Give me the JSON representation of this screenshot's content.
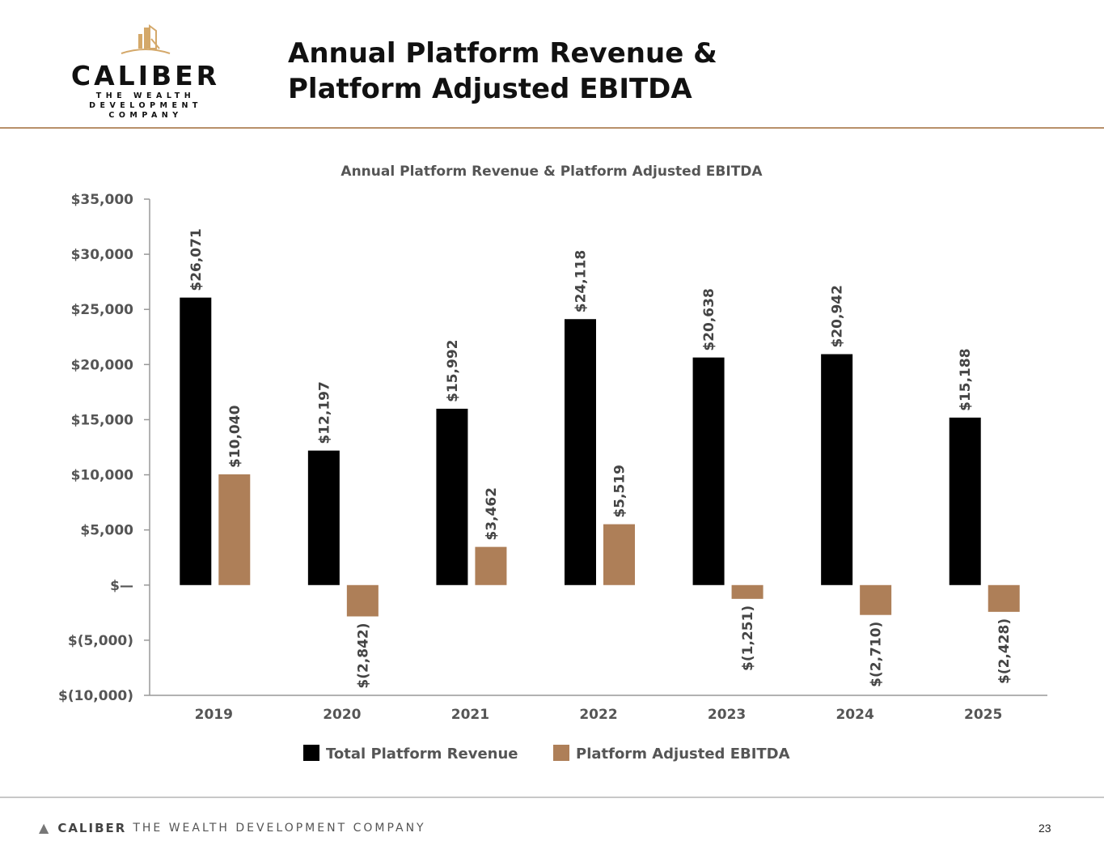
{
  "header": {
    "title_line1": "Annual Platform Revenue &",
    "title_line2": "Platform Adjusted EBITDA",
    "logo": {
      "wordmark": "CALIBER",
      "tagline_line1": "THE WEALTH DEVELOPMENT",
      "tagline_line2": "COMPANY"
    }
  },
  "footer": {
    "brand": "CALIBER",
    "tagline": "THE WEALTH DEVELOPMENT COMPANY",
    "page_number": "23"
  },
  "colors": {
    "revenue": "#000000",
    "ebitda": "#ae7f58",
    "accent_line": "#b8906a"
  },
  "chart_data": {
    "type": "bar",
    "title": "Annual Platform Revenue & Platform Adjusted EBITDA",
    "categories": [
      "2019",
      "2020",
      "2021",
      "2022",
      "2023",
      "2024",
      "2025"
    ],
    "series": [
      {
        "name": "Total Platform Revenue",
        "values": [
          26071,
          12197,
          15992,
          24118,
          20638,
          20942,
          15188
        ],
        "labels": [
          "$26,071",
          "$12,197",
          "$15,992",
          "$24,118",
          "$20,638",
          "$20,942",
          "$15,188"
        ]
      },
      {
        "name": "Platform Adjusted EBITDA",
        "values": [
          10040,
          -2842,
          3462,
          5519,
          -1251,
          -2710,
          -2428
        ],
        "labels": [
          "$10,040",
          "$(2,842)",
          "$3,462",
          "$5,519",
          "$(1,251)",
          "$(2,710)",
          "$(2,428)"
        ]
      }
    ],
    "ylim": [
      -10000,
      35000
    ],
    "yticks": [
      35000,
      30000,
      25000,
      20000,
      15000,
      10000,
      5000,
      0,
      -5000,
      -10000
    ],
    "ytick_labels": [
      "$35,000",
      "$30,000",
      "$25,000",
      "$20,000",
      "$15,000",
      "$10,000",
      "$5,000",
      "$—",
      "$(5,000)",
      "$(10,000)"
    ],
    "legend_position": "bottom",
    "grid": false
  }
}
